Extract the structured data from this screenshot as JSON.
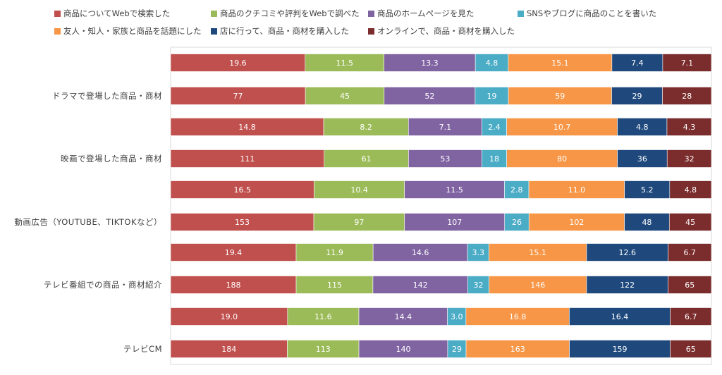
{
  "chart_data": {
    "type": "bar",
    "orientation": "horizontal",
    "stacked": "percent",
    "legend_position": "top",
    "series": [
      {
        "name": "商品についてWebで検索した",
        "color": "#C0504D"
      },
      {
        "name": "商品のクチコミや評判をWebで調べた",
        "color": "#9BBB59"
      },
      {
        "name": "商品のホームページを見た",
        "color": "#8064A2"
      },
      {
        "name": "SNSやブログに商品のことを書いた",
        "color": "#4BACC6"
      },
      {
        "name": "友人・知人・家族と商品を話題にした",
        "color": "#F79646"
      },
      {
        "name": "店に行って、商品・商材を購入した",
        "color": "#1F497D"
      },
      {
        "name": "オンラインで、商品・商材を購入した",
        "color": "#7B2C2C"
      }
    ],
    "groups": [
      {
        "label": "ドラマで登場した商品・商材",
        "rows": [
          {
            "kind": "percent",
            "values": [
              19.6,
              11.5,
              13.3,
              4.8,
              15.1,
              7.4,
              7.1
            ],
            "labels": [
              "19.6",
              "11.5",
              "13.3",
              "4.8",
              "15.1",
              "7.4",
              "7.1"
            ]
          },
          {
            "kind": "count",
            "values": [
              77,
              45,
              52,
              19,
              59,
              29,
              28
            ],
            "labels": [
              "77",
              "45",
              "52",
              "19",
              "59",
              "29",
              "28"
            ]
          }
        ]
      },
      {
        "label": "映画で登場した商品・商材",
        "rows": [
          {
            "kind": "percent",
            "values": [
              14.8,
              8.2,
              7.1,
              2.4,
              10.7,
              4.8,
              4.3
            ],
            "labels": [
              "14.8",
              "8.2",
              "7.1",
              "2.4",
              "10.7",
              "4.8",
              "4.3"
            ]
          },
          {
            "kind": "count",
            "values": [
              111,
              61,
              53,
              18,
              80,
              36,
              32
            ],
            "labels": [
              "111",
              "61",
              "53",
              "18",
              "80",
              "36",
              "32"
            ]
          }
        ]
      },
      {
        "label": "動画広告（YOUTUBE、TIKTOKなど）",
        "rows": [
          {
            "kind": "percent",
            "values": [
              16.5,
              10.4,
              11.5,
              2.8,
              11.0,
              5.2,
              4.8
            ],
            "labels": [
              "16.5",
              "10.4",
              "11.5",
              "2.8",
              "11.0",
              "5.2",
              "4.8"
            ]
          },
          {
            "kind": "count",
            "values": [
              153,
              97,
              107,
              26,
              102,
              48,
              45
            ],
            "labels": [
              "153",
              "97",
              "107",
              "26",
              "102",
              "48",
              "45"
            ]
          }
        ]
      },
      {
        "label": "テレビ番組での商品・商材紹介",
        "rows": [
          {
            "kind": "percent",
            "values": [
              19.4,
              11.9,
              14.6,
              3.3,
              15.1,
              12.6,
              6.7
            ],
            "labels": [
              "19.4",
              "11.9",
              "14.6",
              "3.3",
              "15.1",
              "12.6",
              "6.7"
            ]
          },
          {
            "kind": "count",
            "values": [
              188,
              115,
              142,
              32,
              146,
              122,
              65
            ],
            "labels": [
              "188",
              "115",
              "142",
              "32",
              "146",
              "122",
              "65"
            ]
          }
        ]
      },
      {
        "label": "テレビCM",
        "rows": [
          {
            "kind": "percent",
            "values": [
              19.0,
              11.6,
              14.4,
              3.0,
              16.8,
              16.4,
              6.7
            ],
            "labels": [
              "19.0",
              "11.6",
              "14.4",
              "3.0",
              "16.8",
              "16.4",
              "6.7"
            ]
          },
          {
            "kind": "count",
            "values": [
              184,
              113,
              140,
              29,
              163,
              159,
              65
            ],
            "labels": [
              "184",
              "113",
              "140",
              "29",
              "163",
              "159",
              "65"
            ]
          }
        ]
      }
    ]
  }
}
